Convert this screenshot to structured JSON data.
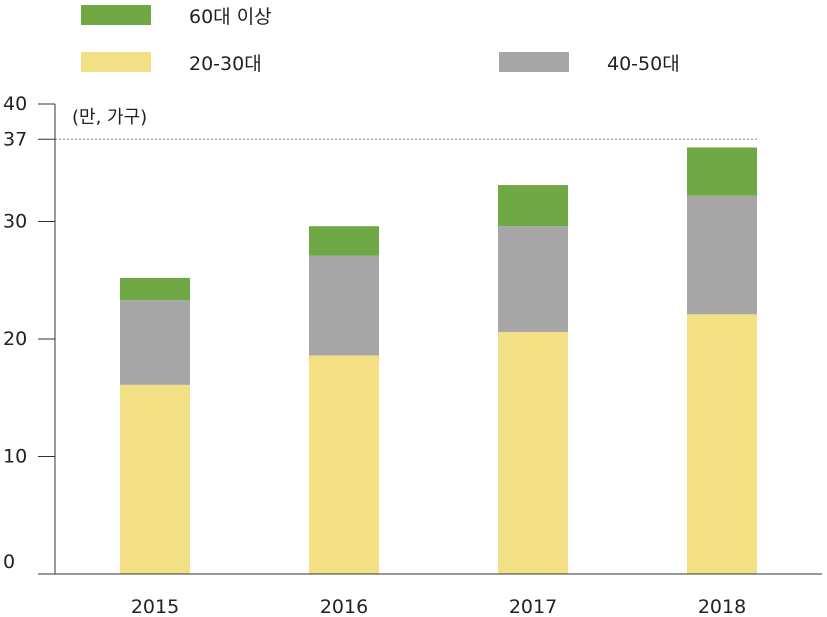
{
  "chart_data": {
    "type": "bar",
    "stacked": true,
    "categories": [
      "2015",
      "2016",
      "2017",
      "2018"
    ],
    "series": [
      {
        "name": "20-30대",
        "values": [
          16.1,
          18.6,
          20.6,
          22.1
        ],
        "color": "#f4e084"
      },
      {
        "name": "40-50대",
        "values": [
          7.2,
          8.5,
          9.0,
          10.1
        ],
        "color": "#a6a6a6"
      },
      {
        "name": "60대 이상",
        "values": [
          1.9,
          2.5,
          3.5,
          4.1
        ],
        "color": "#70a845"
      }
    ],
    "unit_label": "(만, 가구)",
    "yticks": [
      0,
      10,
      20,
      30,
      37,
      40
    ],
    "ylim": [
      0,
      40
    ],
    "reference_line": 37,
    "grid": false,
    "legend_position": "top"
  }
}
